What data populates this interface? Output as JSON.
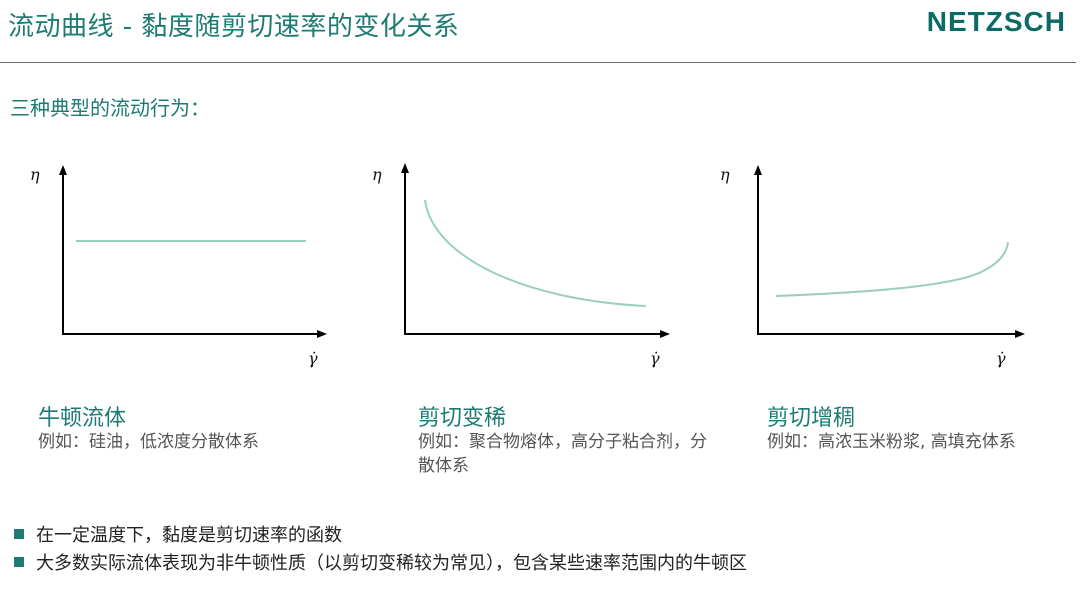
{
  "header": {
    "title": "流动曲线 - 黏度随剪切速率的变化关系",
    "logo": "NETZSCH"
  },
  "subtitle": "三种典型的流动行为：",
  "diagrams": [
    {
      "y_label": "η",
      "x_label": "γ̇",
      "title": "牛顿流体",
      "desc": "例如：硅油，低浓度分散体系"
    },
    {
      "y_label": "η",
      "x_label": "γ̇",
      "title": "剪切变稀",
      "desc": "例如：聚合物熔体，高分子粘合剂，分散体系"
    },
    {
      "y_label": "η",
      "x_label": "γ̇",
      "title": "剪切增稠",
      "desc": "例如：高浓玉米粉浆, 高填充体系"
    }
  ],
  "bullets": [
    "在一定温度下，黏度是剪切速率的函数",
    "大多数实际流体表现为非牛顿性质（以剪切变稀较为常见），包含某些速率范围内的牛顿区"
  ],
  "colors": {
    "accent": "#1e7b73",
    "curve": "#9ccfb8"
  }
}
